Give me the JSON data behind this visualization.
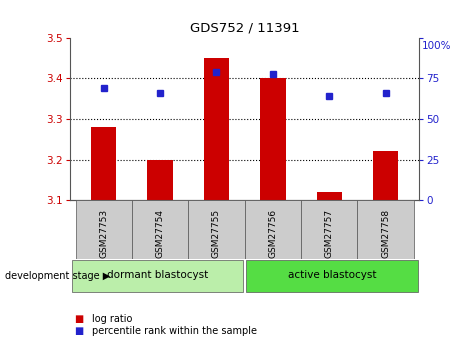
{
  "title": "GDS752 / 11391",
  "samples": [
    "GSM27753",
    "GSM27754",
    "GSM27755",
    "GSM27756",
    "GSM27757",
    "GSM27758"
  ],
  "log_ratio": [
    3.28,
    3.2,
    3.45,
    3.4,
    3.12,
    3.22
  ],
  "percentile_rank": [
    69,
    66,
    79,
    78,
    64,
    66
  ],
  "bar_bottom": 3.1,
  "ylim_left": [
    3.1,
    3.5
  ],
  "ylim_right": [
    0,
    100
  ],
  "yticks_left": [
    3.1,
    3.2,
    3.3,
    3.4,
    3.5
  ],
  "yticks_right": [
    0,
    25,
    50,
    75,
    100
  ],
  "bar_color": "#cc0000",
  "dot_color": "#2222cc",
  "group1_label": "dormant blastocyst",
  "group2_label": "active blastocyst",
  "group1_color": "#bbeeaa",
  "group2_color": "#55dd44",
  "stage_label": "development stage",
  "legend_bar_label": "log ratio",
  "legend_dot_label": "percentile rank within the sample",
  "bar_width": 0.45,
  "grid_yticks": [
    3.2,
    3.3,
    3.4
  ],
  "xticklabel_bg": "#cccccc",
  "group_border_color": "#888888",
  "pct_symbol": "100%"
}
